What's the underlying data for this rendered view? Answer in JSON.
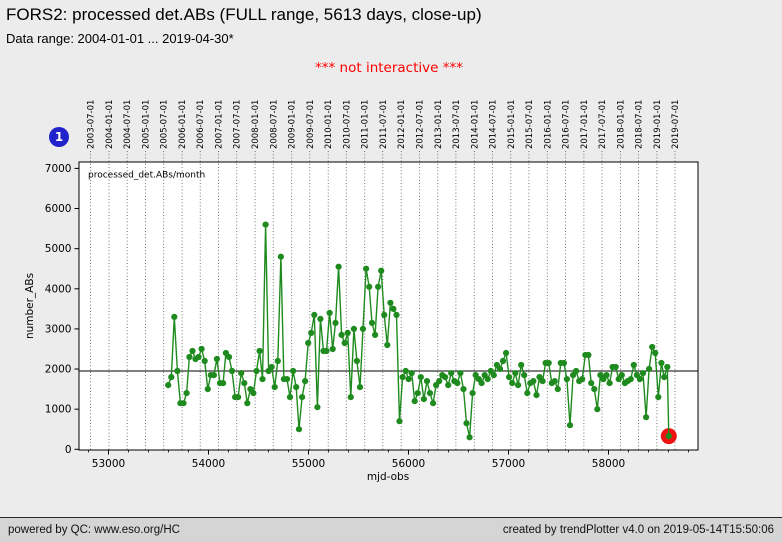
{
  "header": {
    "title": "FORS2: processed det.ABs (FULL range, 5613 days, close-up)",
    "subtitle": "Data range: 2004-01-01 ... 2019-04-30*",
    "notice": "*** not interactive ***",
    "notice_color": "#ff0000",
    "badge_label": "1",
    "badge_color": "#2222cc"
  },
  "footer": {
    "left": "powered by QC: www.eso.org/HC",
    "right": "created by trendPlotter v4.0 on 2019-05-14T15:50:06"
  },
  "chart_data": {
    "type": "line",
    "legend_label": "processed_det.ABs/month",
    "xlabel": "mjd-obs",
    "ylabel": "number_ABs",
    "series_color": "#1f8b1f",
    "highlight_color": "#ee1111",
    "mean_line": 1950,
    "ylim": [
      0,
      7000
    ],
    "xlim_mjd": [
      52705,
      58895
    ],
    "yticks": [
      0,
      1000,
      2000,
      3000,
      4000,
      5000,
      6000,
      7000
    ],
    "xticks": [
      53000,
      54000,
      55000,
      56000,
      57000,
      58000
    ],
    "xtick_minor_step": 200,
    "grid": "dotted-vertical-at-top-axis-dates",
    "legend_position": "upper-left-inside",
    "top_axis_dates": [
      "2003-07-01",
      "2004-01-01",
      "2004-07-01",
      "2005-01-01",
      "2005-07-01",
      "2006-01-01",
      "2006-07-01",
      "2007-01-01",
      "2007-07-01",
      "2008-01-01",
      "2008-07-01",
      "2009-01-01",
      "2009-07-01",
      "2010-01-01",
      "2010-07-01",
      "2011-01-01",
      "2011-07-01",
      "2012-01-01",
      "2012-07-01",
      "2013-01-01",
      "2013-07-01",
      "2014-01-01",
      "2014-07-01",
      "2015-01-01",
      "2015-07-01",
      "2016-01-01",
      "2016-07-01",
      "2017-01-01",
      "2017-07-01",
      "2018-01-01",
      "2018-07-01",
      "2019-01-01",
      "2019-07-01"
    ],
    "points": [
      [
        "2005-08",
        1600
      ],
      [
        "2005-09",
        1800
      ],
      [
        "2005-10",
        3300
      ],
      [
        "2005-11",
        1950
      ],
      [
        "2005-12",
        1150
      ],
      [
        "2006-01",
        1150
      ],
      [
        "2006-02",
        1400
      ],
      [
        "2006-03",
        2300
      ],
      [
        "2006-04",
        2450
      ],
      [
        "2006-05",
        2250
      ],
      [
        "2006-06",
        2300
      ],
      [
        "2006-07",
        2500
      ],
      [
        "2006-08",
        2200
      ],
      [
        "2006-09",
        1500
      ],
      [
        "2006-10",
        1850
      ],
      [
        "2006-11",
        1850
      ],
      [
        "2006-12",
        2250
      ],
      [
        "2007-01",
        1650
      ],
      [
        "2007-02",
        1650
      ],
      [
        "2007-03",
        2400
      ],
      [
        "2007-04",
        2300
      ],
      [
        "2007-05",
        1950
      ],
      [
        "2007-06",
        1300
      ],
      [
        "2007-07",
        1300
      ],
      [
        "2007-08",
        1900
      ],
      [
        "2007-09",
        1650
      ],
      [
        "2007-10",
        1150
      ],
      [
        "2007-11",
        1500
      ],
      [
        "2007-12",
        1400
      ],
      [
        "2008-01",
        1950
      ],
      [
        "2008-02",
        2450
      ],
      [
        "2008-03",
        1750
      ],
      [
        "2008-04",
        5600
      ],
      [
        "2008-05",
        1950
      ],
      [
        "2008-06",
        2050
      ],
      [
        "2008-07",
        1550
      ],
      [
        "2008-08",
        2200
      ],
      [
        "2008-09",
        4800
      ],
      [
        "2008-10",
        1750
      ],
      [
        "2008-11",
        1750
      ],
      [
        "2008-12",
        1300
      ],
      [
        "2009-01",
        1950
      ],
      [
        "2009-02",
        1550
      ],
      [
        "2009-03",
        500
      ],
      [
        "2009-04",
        1300
      ],
      [
        "2009-05",
        1700
      ],
      [
        "2009-06",
        2650
      ],
      [
        "2009-07",
        2900
      ],
      [
        "2009-08",
        3350
      ],
      [
        "2009-09",
        1050
      ],
      [
        "2009-10",
        3250
      ],
      [
        "2009-11",
        2450
      ],
      [
        "2009-12",
        2450
      ],
      [
        "2010-01",
        3400
      ],
      [
        "2010-02",
        2500
      ],
      [
        "2010-03",
        3150
      ],
      [
        "2010-04",
        4550
      ],
      [
        "2010-05",
        2850
      ],
      [
        "2010-06",
        2650
      ],
      [
        "2010-07",
        2900
      ],
      [
        "2010-08",
        1300
      ],
      [
        "2010-09",
        3000
      ],
      [
        "2010-10",
        2200
      ],
      [
        "2010-11",
        1550
      ],
      [
        "2010-12",
        3000
      ],
      [
        "2011-01",
        4500
      ],
      [
        "2011-02",
        4050
      ],
      [
        "2011-03",
        3150
      ],
      [
        "2011-04",
        2850
      ],
      [
        "2011-05",
        4050
      ],
      [
        "2011-06",
        4450
      ],
      [
        "2011-07",
        3350
      ],
      [
        "2011-08",
        2600
      ],
      [
        "2011-09",
        3650
      ],
      [
        "2011-10",
        3500
      ],
      [
        "2011-11",
        3350
      ],
      [
        "2011-12",
        700
      ],
      [
        "2012-01",
        1800
      ],
      [
        "2012-02",
        1950
      ],
      [
        "2012-03",
        1750
      ],
      [
        "2012-04",
        1900
      ],
      [
        "2012-05",
        1200
      ],
      [
        "2012-06",
        1400
      ],
      [
        "2012-07",
        1800
      ],
      [
        "2012-08",
        1250
      ],
      [
        "2012-09",
        1700
      ],
      [
        "2012-10",
        1400
      ],
      [
        "2012-11",
        1150
      ],
      [
        "2012-12",
        1600
      ],
      [
        "2013-01",
        1700
      ],
      [
        "2013-02",
        1850
      ],
      [
        "2013-03",
        1800
      ],
      [
        "2013-04",
        1600
      ],
      [
        "2013-05",
        1900
      ],
      [
        "2013-06",
        1700
      ],
      [
        "2013-07",
        1650
      ],
      [
        "2013-08",
        1900
      ],
      [
        "2013-09",
        1500
      ],
      [
        "2013-10",
        650
      ],
      [
        "2013-11",
        300
      ],
      [
        "2013-12",
        1400
      ],
      [
        "2014-01",
        1850
      ],
      [
        "2014-02",
        1750
      ],
      [
        "2014-03",
        1650
      ],
      [
        "2014-04",
        1850
      ],
      [
        "2014-05",
        1750
      ],
      [
        "2014-06",
        1950
      ],
      [
        "2014-07",
        1850
      ],
      [
        "2014-08",
        2100
      ],
      [
        "2014-09",
        2000
      ],
      [
        "2014-10",
        2200
      ],
      [
        "2014-11",
        2400
      ],
      [
        "2014-12",
        1800
      ],
      [
        "2015-01",
        1650
      ],
      [
        "2015-02",
        1900
      ],
      [
        "2015-03",
        1600
      ],
      [
        "2015-04",
        2100
      ],
      [
        "2015-05",
        1850
      ],
      [
        "2015-06",
        1400
      ],
      [
        "2015-07",
        1650
      ],
      [
        "2015-08",
        1700
      ],
      [
        "2015-09",
        1350
      ],
      [
        "2015-10",
        1800
      ],
      [
        "2015-11",
        1700
      ],
      [
        "2015-12",
        2150
      ],
      [
        "2016-01",
        2150
      ],
      [
        "2016-02",
        1650
      ],
      [
        "2016-03",
        1700
      ],
      [
        "2016-04",
        1500
      ],
      [
        "2016-05",
        2150
      ],
      [
        "2016-06",
        2150
      ],
      [
        "2016-07",
        1750
      ],
      [
        "2016-08",
        600
      ],
      [
        "2016-09",
        1850
      ],
      [
        "2016-10",
        1950
      ],
      [
        "2016-11",
        1700
      ],
      [
        "2016-12",
        1750
      ],
      [
        "2017-01",
        2350
      ],
      [
        "2017-02",
        2350
      ],
      [
        "2017-03",
        1650
      ],
      [
        "2017-04",
        1500
      ],
      [
        "2017-05",
        1000
      ],
      [
        "2017-06",
        1850
      ],
      [
        "2017-07",
        1750
      ],
      [
        "2017-08",
        1850
      ],
      [
        "2017-09",
        1650
      ],
      [
        "2017-10",
        2050
      ],
      [
        "2017-11",
        2050
      ],
      [
        "2017-12",
        1750
      ],
      [
        "2018-01",
        1850
      ],
      [
        "2018-02",
        1650
      ],
      [
        "2018-03",
        1700
      ],
      [
        "2018-04",
        1750
      ],
      [
        "2018-05",
        2100
      ],
      [
        "2018-06",
        1850
      ],
      [
        "2018-07",
        1750
      ],
      [
        "2018-08",
        1900
      ],
      [
        "2018-09",
        800
      ],
      [
        "2018-10",
        2000
      ],
      [
        "2018-11",
        2550
      ],
      [
        "2018-12",
        2400
      ],
      [
        "2019-01",
        1300
      ],
      [
        "2019-02",
        2150
      ],
      [
        "2019-03",
        1800
      ],
      [
        "2019-04",
        2050
      ],
      [
        "2019-04-30",
        330
      ]
    ],
    "highlighted_point": {
      "date": "2019-04-30",
      "value": 330,
      "marker": "red-ring"
    }
  }
}
